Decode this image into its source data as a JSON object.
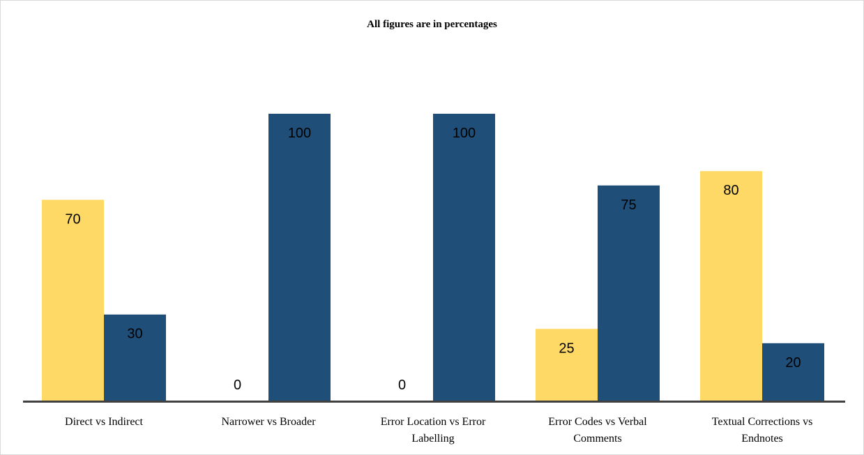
{
  "title": "All figures are in percentages",
  "colors": {
    "series_a": "#FFD966",
    "series_b": "#1F4E79",
    "axis": "#404040"
  },
  "chart_data": {
    "type": "bar",
    "title": "All figures are in percentages",
    "categories": [
      "Direct vs Indirect",
      "Narrower vs Broader",
      "Error Location vs Error Labelling",
      "Error Codes vs Verbal Comments",
      "Textual Corrections vs Endnotes"
    ],
    "category_lines": [
      [
        "Direct vs Indirect"
      ],
      [
        "Narrower vs Broader"
      ],
      [
        "Error Location vs Error",
        "Labelling"
      ],
      [
        "Error Codes vs Verbal",
        "Comments"
      ],
      [
        "Textual Corrections vs",
        "Endnotes"
      ]
    ],
    "series": [
      {
        "values": [
          70,
          0,
          0,
          25,
          80
        ]
      },
      {
        "values": [
          30,
          100,
          100,
          75,
          20
        ]
      }
    ],
    "ylim": [
      0,
      100
    ],
    "grid": false,
    "xlabel": "",
    "ylabel": ""
  }
}
